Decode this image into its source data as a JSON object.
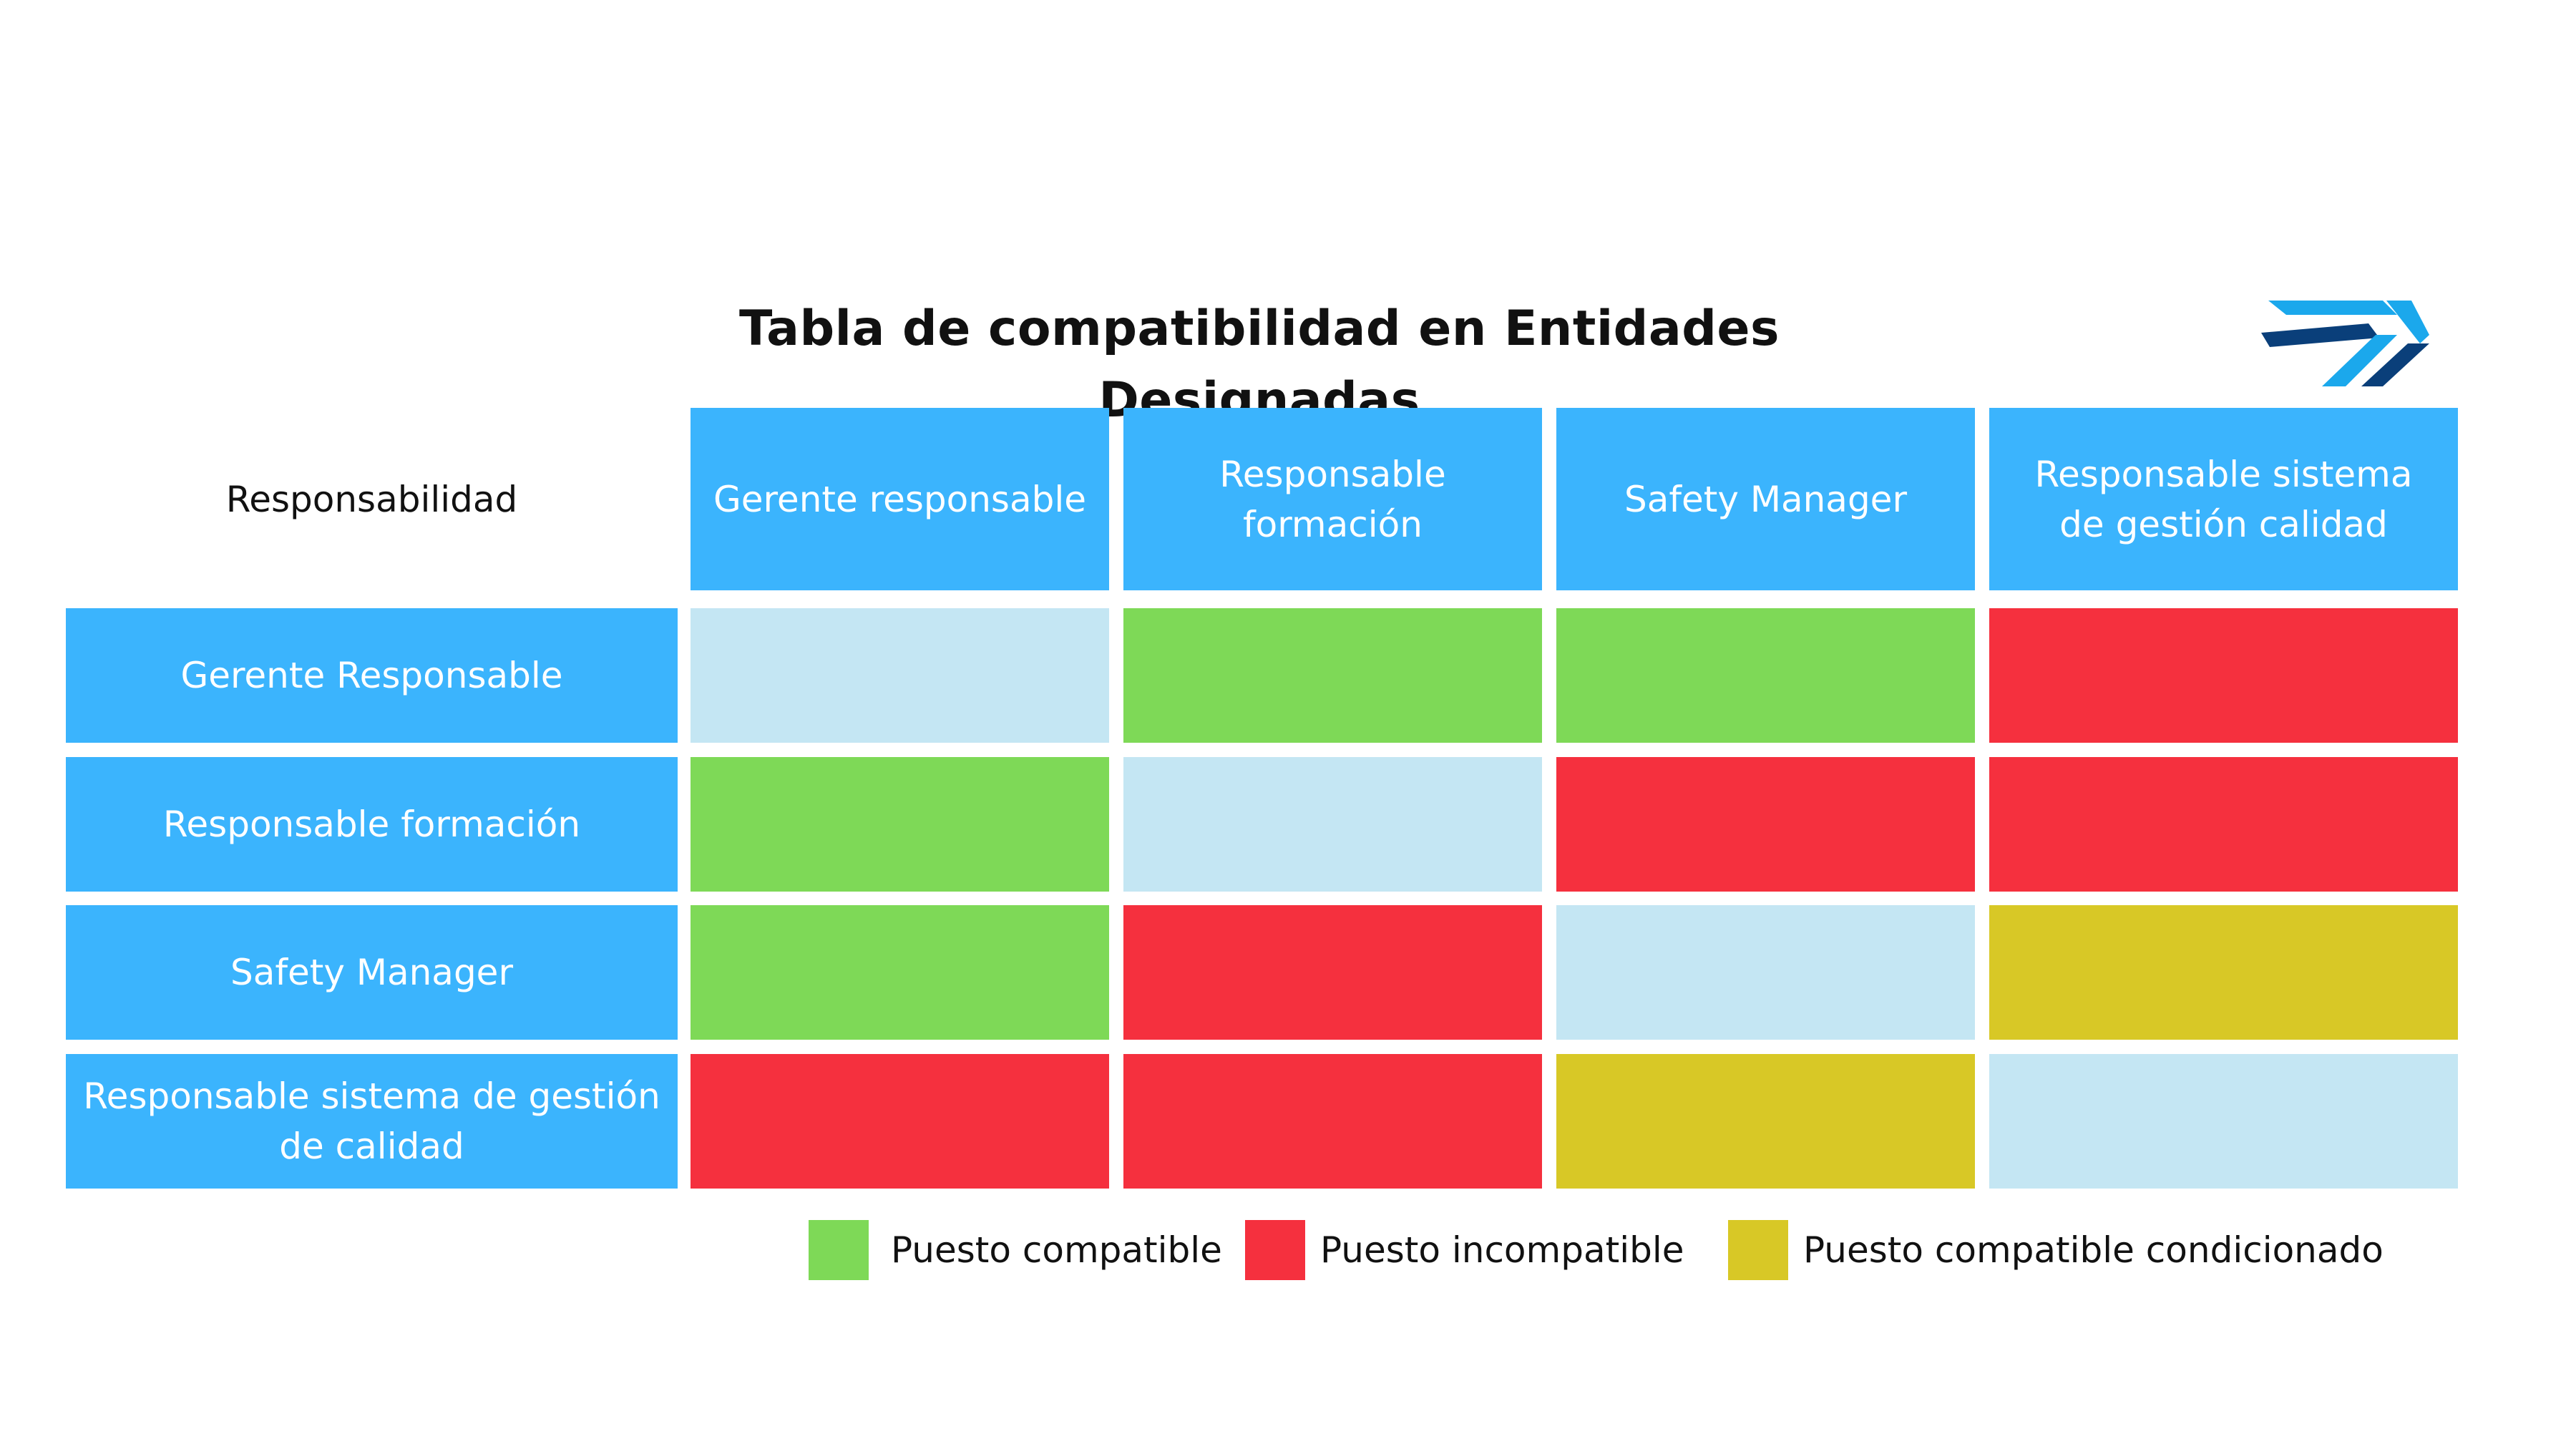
{
  "title": "Tabla de compatibilidad en Entidades Designadas",
  "logo": {
    "icon": "company-logo-icon",
    "colors": [
      "#1ba8ec",
      "#0a3f7a"
    ]
  },
  "corner_label": "Responsabilidad",
  "columns": [
    "Gerente responsable",
    "Responsable formación",
    "Safety Manager",
    "Responsable sistema de gestión  calidad"
  ],
  "rows": [
    {
      "label": "Gerente Responsable",
      "cells": [
        "self",
        "compatible",
        "compatible",
        "incompatible"
      ]
    },
    {
      "label": "Responsable formación",
      "cells": [
        "compatible",
        "self",
        "incompatible",
        "incompatible"
      ]
    },
    {
      "label": "Safety Manager",
      "cells": [
        "compatible",
        "incompatible",
        "self",
        "conditional"
      ]
    },
    {
      "label": "Responsable sistema de gestión de calidad",
      "cells": [
        "incompatible",
        "incompatible",
        "conditional",
        "self"
      ]
    }
  ],
  "colors": {
    "header": "#3bb4fd",
    "self": "#c4e6f3",
    "compatible": "#7ed957",
    "incompatible": "#f5303e",
    "conditional": "#d8c826"
  },
  "legend": [
    {
      "key": "compatible",
      "label": "Puesto compatible"
    },
    {
      "key": "incompatible",
      "label": "Puesto incompatible"
    },
    {
      "key": "conditional",
      "label": "Puesto compatible condicionado"
    }
  ]
}
